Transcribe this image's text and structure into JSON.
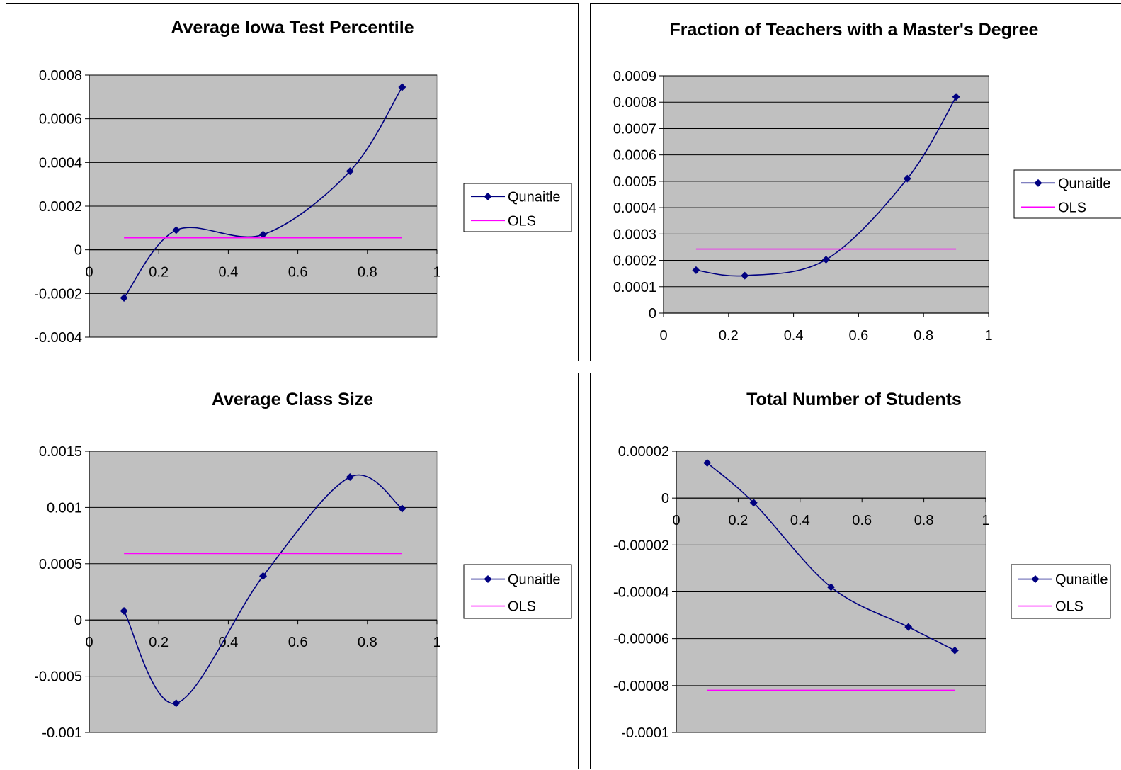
{
  "chart_data": [
    {
      "type": "line",
      "title": "Average Iowa Test Percentile",
      "x": [
        0.1,
        0.25,
        0.5,
        0.75,
        0.9
      ],
      "xlim": [
        0,
        1
      ],
      "xticks": [
        "0",
        "0.2",
        "0.4",
        "0.6",
        "0.8",
        "1"
      ],
      "ylim": [
        -0.0004,
        0.0008
      ],
      "yticks": [
        "0.0008",
        "0.0006",
        "0.0004",
        "0.0002",
        "0",
        "-0.0002",
        "-0.0004"
      ],
      "series": [
        {
          "name": "Qunaitle",
          "color": "#000080",
          "marker": "diamond",
          "smooth": true,
          "values": [
            -0.00022,
            9e-05,
            7e-05,
            0.00036,
            0.000745
          ]
        },
        {
          "name": "OLS",
          "color": "#ff00ff",
          "marker": "none",
          "values": [
            5.5e-05,
            5.5e-05,
            5.5e-05,
            5.5e-05,
            5.5e-05
          ]
        }
      ],
      "grid": true,
      "legend": "right"
    },
    {
      "type": "line",
      "title": "Fraction of Teachers with a Master's Degree",
      "x": [
        0.1,
        0.25,
        0.5,
        0.75,
        0.9
      ],
      "xlim": [
        0,
        1
      ],
      "xticks": [
        "0",
        "0.2",
        "0.4",
        "0.6",
        "0.8",
        "1"
      ],
      "ylim": [
        0,
        0.0009
      ],
      "yticks": [
        "0.0009",
        "0.0008",
        "0.0007",
        "0.0006",
        "0.0005",
        "0.0004",
        "0.0003",
        "0.0002",
        "0.0001",
        "0"
      ],
      "series": [
        {
          "name": "Qunaitle",
          "color": "#000080",
          "marker": "diamond",
          "smooth": true,
          "values": [
            0.000163,
            0.000142,
            0.000203,
            0.00051,
            0.00082
          ]
        },
        {
          "name": "OLS",
          "color": "#ff00ff",
          "marker": "none",
          "values": [
            0.000243,
            0.000243,
            0.000243,
            0.000243,
            0.000243
          ]
        }
      ],
      "grid": true,
      "legend": "right"
    },
    {
      "type": "line",
      "title": "Average Class Size",
      "x": [
        0.1,
        0.25,
        0.5,
        0.75,
        0.9
      ],
      "xlim": [
        0,
        1
      ],
      "xticks": [
        "0",
        "0.2",
        "0.4",
        "0.6",
        "0.8",
        "1"
      ],
      "ylim": [
        -0.001,
        0.0015
      ],
      "yticks": [
        "0.0015",
        "0.001",
        "0.0005",
        "0",
        "-0.0005",
        "-0.001"
      ],
      "series": [
        {
          "name": "Qunaitle",
          "color": "#000080",
          "marker": "diamond",
          "smooth": true,
          "values": [
            8e-05,
            -0.00074,
            0.00039,
            0.00127,
            0.00099
          ]
        },
        {
          "name": "OLS",
          "color": "#ff00ff",
          "marker": "none",
          "values": [
            0.00059,
            0.00059,
            0.00059,
            0.00059,
            0.00059
          ]
        }
      ],
      "grid": true,
      "legend": "right"
    },
    {
      "type": "line",
      "title": "Total Number of Students",
      "x": [
        0.1,
        0.25,
        0.5,
        0.75,
        0.9
      ],
      "xlim": [
        0,
        1
      ],
      "xticks": [
        "0",
        "0.2",
        "0.4",
        "0.6",
        "0.8",
        "1"
      ],
      "ylim": [
        -0.0001,
        2e-05
      ],
      "yticks": [
        "0.00002",
        "0",
        "-0.00002",
        "-0.00004",
        "-0.00006",
        "-0.00008",
        "-0.0001"
      ],
      "series": [
        {
          "name": "Qunaitle",
          "color": "#000080",
          "marker": "diamond",
          "smooth": true,
          "values": [
            1.5e-05,
            -2e-06,
            -3.8e-05,
            -5.5e-05,
            -6.5e-05
          ]
        },
        {
          "name": "OLS",
          "color": "#ff00ff",
          "marker": "none",
          "values": [
            -8.2e-05,
            -8.2e-05,
            -8.2e-05,
            -8.2e-05,
            -8.2e-05
          ]
        }
      ],
      "grid": true,
      "legend": "right"
    }
  ]
}
